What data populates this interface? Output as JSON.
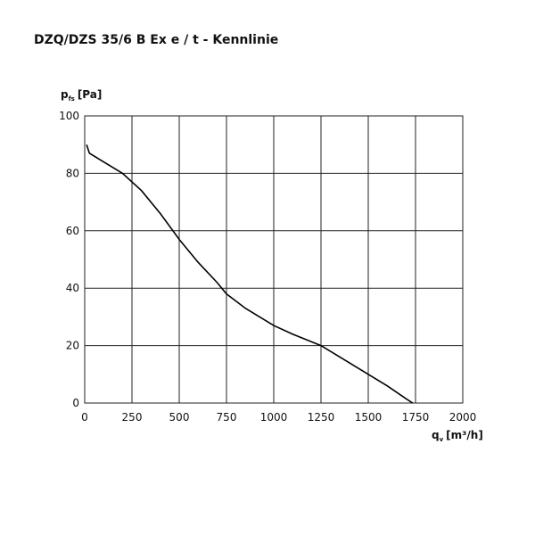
{
  "chart_data": {
    "type": "line",
    "title": "DZQ/DZS 35/6 B Ex e / t - Kennlinie",
    "ylabel": [
      "p",
      "fs",
      "[Pa]"
    ],
    "xlabel": [
      "q",
      "v",
      "[m³/h]"
    ],
    "x": [
      10,
      25,
      100,
      200,
      300,
      400,
      500,
      600,
      700,
      750,
      850,
      1000,
      1100,
      1250,
      1350,
      1500,
      1600,
      1700,
      1735
    ],
    "series": [
      {
        "color": "#000000",
        "values": [
          90,
          87,
          84,
          80,
          74,
          66,
          57,
          49,
          42,
          38,
          33,
          27,
          24,
          20,
          16,
          10,
          6,
          1.5,
          0
        ]
      }
    ],
    "xlim": [
      0,
      2000
    ],
    "xticks": [
      0,
      250,
      500,
      750,
      1000,
      1250,
      1500,
      1750,
      2000
    ],
    "ylim": [
      0,
      100
    ],
    "yticks": [
      0,
      20,
      40,
      60,
      80,
      100
    ],
    "grid": true
  }
}
